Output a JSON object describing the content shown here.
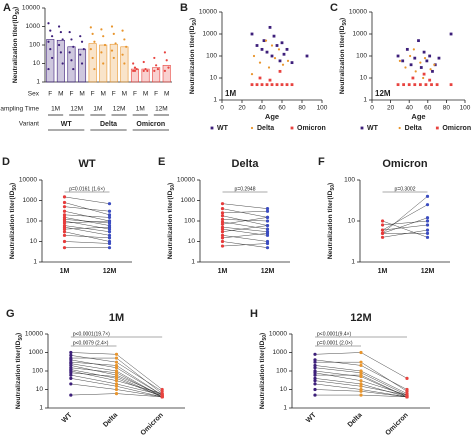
{
  "chart_data": [
    {
      "type": "bar",
      "panel": "A",
      "ylabel": [
        "Neutralization titer(ID",
        "50",
        ")"
      ],
      "log_y": true,
      "ylim": [
        1,
        10000
      ],
      "yticks": [
        1,
        10,
        100,
        1000,
        10000
      ],
      "values": [
        200,
        180,
        80,
        60,
        120,
        100,
        110,
        80,
        5,
        5,
        6,
        8
      ],
      "colors": [
        "#3d1f7a",
        "#3d1f7a",
        "#3d1f7a",
        "#3d1f7a",
        "#e8952d",
        "#e8952d",
        "#e8952d",
        "#e8952d",
        "#e8433f",
        "#e8433f",
        "#e8433f",
        "#e8433f"
      ],
      "points": [
        [
          1500,
          600,
          300,
          150,
          60,
          20,
          5
        ],
        [
          1000,
          500,
          200,
          100,
          40,
          10
        ],
        [
          500,
          200,
          80,
          40,
          15,
          5
        ],
        [
          300,
          150,
          60,
          30,
          10
        ],
        [
          900,
          400,
          150,
          60,
          20,
          5
        ],
        [
          700,
          300,
          100,
          40,
          10
        ],
        [
          1000,
          400,
          120,
          50,
          20
        ],
        [
          600,
          200,
          80,
          30,
          10
        ],
        [
          10,
          6,
          5,
          4,
          4
        ],
        [
          12,
          5,
          4,
          4
        ],
        [
          20,
          8,
          5,
          4
        ],
        [
          40,
          15,
          6,
          4
        ]
      ],
      "table": {
        "rows": [
          {
            "label": "Sex",
            "cells": [
              "F",
              "M",
              "F",
              "M",
              "F",
              "M",
              "F",
              "M",
              "F",
              "M",
              "F",
              "M"
            ]
          },
          {
            "label": "Sampling Time",
            "cells": [
              "1M",
              "12M",
              "1M",
              "12M",
              "1M",
              "12M"
            ]
          },
          {
            "label": "Variant",
            "cells": [
              "WT",
              "Delta",
              "Omicron"
            ]
          }
        ]
      }
    },
    {
      "type": "scatter",
      "panel": "B",
      "inset_label": "1M",
      "xlabel": "Age",
      "ylabel": [
        "Neutralization titer(ID",
        "50",
        ")"
      ],
      "log_y": true,
      "xlim": [
        0,
        100
      ],
      "xticks": [
        0,
        20,
        40,
        60,
        80,
        100
      ],
      "ylim": [
        1,
        10000
      ],
      "yticks": [
        1,
        10,
        100,
        1000,
        10000
      ],
      "legend": "bottom",
      "series": [
        {
          "name": "WT",
          "color": "#3d1f7a",
          "x": [
            30,
            35,
            40,
            42,
            45,
            48,
            50,
            52,
            55,
            58,
            60,
            62,
            65,
            70,
            85
          ],
          "y": [
            1000,
            300,
            200,
            500,
            150,
            2000,
            100,
            800,
            300,
            60,
            400,
            120,
            200,
            50,
            100
          ]
        },
        {
          "name": "Delta",
          "color": "#e8952d",
          "x": [
            32,
            38,
            44,
            47,
            53,
            57,
            61,
            66,
            30,
            50
          ],
          "y": [
            100,
            50,
            500,
            30,
            80,
            200,
            40,
            60,
            15,
            300
          ]
        },
        {
          "name": "Omicron",
          "color": "#e8433f",
          "x": [
            30,
            35,
            40,
            45,
            50,
            55,
            60,
            65,
            70,
            38,
            48,
            58
          ],
          "y": [
            5,
            5,
            5,
            5,
            5,
            5,
            5,
            5,
            5,
            10,
            8,
            20
          ]
        }
      ]
    },
    {
      "type": "scatter",
      "panel": "C",
      "inset_label": "12M",
      "xlabel": "Age",
      "ylabel": [
        "Neutralization titer(ID",
        "50",
        ")"
      ],
      "log_y": true,
      "xlim": [
        0,
        100
      ],
      "xticks": [
        0,
        20,
        40,
        60,
        80,
        100
      ],
      "ylim": [
        1,
        10000
      ],
      "yticks": [
        1,
        10,
        100,
        1000,
        10000
      ],
      "legend": "bottom",
      "series": [
        {
          "name": "WT",
          "color": "#3d1f7a",
          "x": [
            28,
            33,
            38,
            42,
            46,
            50,
            53,
            56,
            59,
            62,
            65,
            68,
            72,
            85
          ],
          "y": [
            100,
            60,
            200,
            40,
            80,
            500,
            30,
            150,
            60,
            100,
            20,
            40,
            80,
            1000
          ]
        },
        {
          "name": "Delta",
          "color": "#e8952d",
          "x": [
            30,
            36,
            41,
            47,
            52,
            57,
            63,
            67,
            45,
            55
          ],
          "y": [
            60,
            30,
            100,
            20,
            50,
            80,
            25,
            40,
            200,
            10
          ]
        },
        {
          "name": "Omicron",
          "color": "#e8433f",
          "x": [
            28,
            34,
            40,
            46,
            52,
            58,
            64,
            70,
            44,
            56,
            62,
            85
          ],
          "y": [
            5,
            5,
            5,
            5,
            5,
            5,
            5,
            5,
            10,
            15,
            8,
            5
          ]
        }
      ]
    },
    {
      "type": "paired",
      "panel": "D",
      "title": "WT",
      "ylabel": [
        "Neutralization titer(ID",
        "50",
        ")"
      ],
      "log_y": true,
      "categories": [
        "1M",
        "12M"
      ],
      "colors": [
        "#e63b3b",
        "#3b4cc0"
      ],
      "ylim": [
        1,
        10000
      ],
      "yticks": [
        1,
        10,
        100,
        1000,
        10000
      ],
      "annotations": [
        "p=0.0161 (1.6×)"
      ],
      "values": [
        [
          1500,
          700
        ],
        [
          800,
          200
        ],
        [
          500,
          300
        ],
        [
          300,
          100
        ],
        [
          200,
          150
        ],
        [
          150,
          60
        ],
        [
          120,
          80
        ],
        [
          100,
          40
        ],
        [
          80,
          100
        ],
        [
          60,
          30
        ],
        [
          50,
          20
        ],
        [
          40,
          50
        ],
        [
          30,
          10
        ],
        [
          20,
          15
        ],
        [
          10,
          8
        ],
        [
          5,
          5
        ]
      ]
    },
    {
      "type": "paired",
      "panel": "E",
      "title": "Delta",
      "ylabel": [
        "Neutralization titer(ID",
        "50",
        ")"
      ],
      "log_y": true,
      "categories": [
        "1M",
        "12M"
      ],
      "colors": [
        "#e63b3b",
        "#3b4cc0"
      ],
      "ylim": [
        1,
        10000
      ],
      "yticks": [
        1,
        10,
        100,
        1000,
        10000
      ],
      "annotations": [
        "p=0.2948"
      ],
      "values": [
        [
          700,
          400
        ],
        [
          400,
          150
        ],
        [
          250,
          300
        ],
        [
          180,
          60
        ],
        [
          120,
          100
        ],
        [
          90,
          40
        ],
        [
          70,
          150
        ],
        [
          50,
          30
        ],
        [
          40,
          20
        ],
        [
          30,
          60
        ],
        [
          20,
          10
        ],
        [
          15,
          25
        ],
        [
          10,
          5
        ],
        [
          6,
          8
        ]
      ]
    },
    {
      "type": "paired",
      "panel": "F",
      "title": "Omicron",
      "ylabel": [
        "Neutralization titer(ID",
        "50",
        ")"
      ],
      "log_y": true,
      "categories": [
        "1M",
        "12M"
      ],
      "colors": [
        "#e63b3b",
        "#3b4cc0"
      ],
      "ylim": [
        1,
        100
      ],
      "yticks": [
        1,
        10,
        100
      ],
      "annotations": [
        "p=0.3002"
      ],
      "values": [
        [
          5,
          40
        ],
        [
          6,
          25
        ],
        [
          5,
          12
        ],
        [
          8,
          10
        ],
        [
          4,
          6
        ],
        [
          5,
          5
        ],
        [
          10,
          4
        ],
        [
          6,
          8
        ]
      ]
    },
    {
      "type": "paired",
      "panel": "G",
      "title": "1M",
      "ylabel": [
        "Neutralization titer(ID",
        "50",
        ")"
      ],
      "log_y": true,
      "categories": [
        "WT",
        "Delta",
        "Omicron"
      ],
      "colors": [
        "#3d1f7a",
        "#e8952d",
        "#e8433f"
      ],
      "ylim": [
        1,
        10000
      ],
      "yticks": [
        1,
        10,
        100,
        1000,
        10000
      ],
      "annotations": [
        "p<0.0079 (2.4×)",
        "p<0.0001(19.7×)"
      ],
      "values": [
        [
          1000,
          800,
          10
        ],
        [
          700,
          300,
          8
        ],
        [
          500,
          500,
          6
        ],
        [
          400,
          150,
          5
        ],
        [
          300,
          200,
          5
        ],
        [
          250,
          100,
          4
        ],
        [
          200,
          60,
          5
        ],
        [
          150,
          80,
          4
        ],
        [
          120,
          40,
          4
        ],
        [
          100,
          30,
          6
        ],
        [
          80,
          50,
          4
        ],
        [
          60,
          20,
          5
        ],
        [
          40,
          15,
          4
        ],
        [
          20,
          10,
          4
        ],
        [
          5,
          6,
          4
        ]
      ]
    },
    {
      "type": "paired",
      "panel": "H",
      "title": "12M",
      "ylabel": [
        "Neutralization titer(ID",
        "50",
        ")"
      ],
      "log_y": true,
      "categories": [
        "WT",
        "Delta",
        "Omicron"
      ],
      "colors": [
        "#3d1f7a",
        "#e8952d",
        "#e8433f"
      ],
      "ylim": [
        1,
        10000
      ],
      "yticks": [
        1,
        10,
        100,
        1000,
        10000
      ],
      "annotations": [
        "p=0.0001 (2.0×)",
        "p<0.0001(9.4×)"
      ],
      "values": [
        [
          800,
          1000,
          40
        ],
        [
          400,
          200,
          10
        ],
        [
          300,
          300,
          8
        ],
        [
          200,
          100,
          6
        ],
        [
          150,
          80,
          5
        ],
        [
          100,
          50,
          4
        ],
        [
          80,
          30,
          5
        ],
        [
          60,
          60,
          4
        ],
        [
          40,
          20,
          4
        ],
        [
          30,
          15,
          5
        ],
        [
          20,
          10,
          4
        ],
        [
          10,
          8,
          4
        ],
        [
          5,
          5,
          4
        ]
      ]
    }
  ]
}
